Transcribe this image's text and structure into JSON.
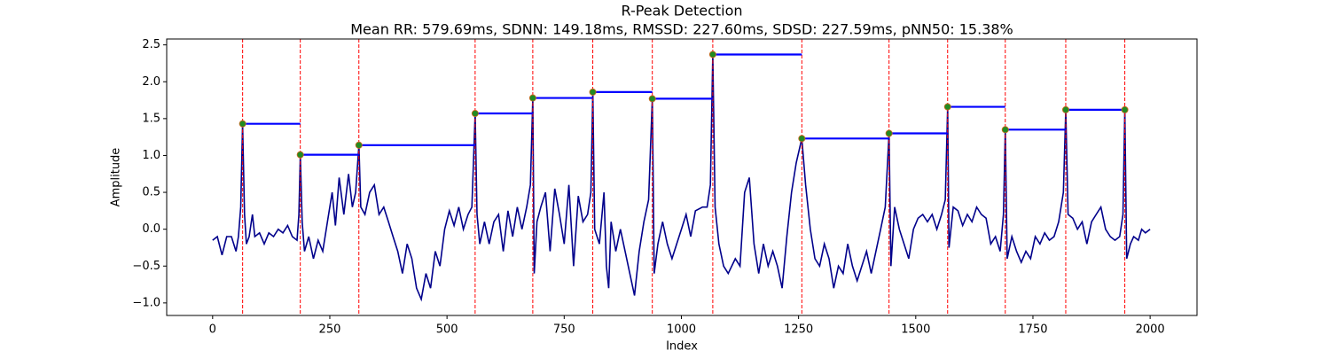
{
  "chart_data": {
    "type": "line",
    "title": "R-Peak Detection",
    "subtitle": "Mean RR: 579.69ms, SDNN: 149.18ms, RMSSD: 227.60ms, SDSD: 227.59ms, pNN50: 15.38%",
    "xlabel": "Index",
    "ylabel": "Amplitude",
    "xlim": [
      -98,
      2100
    ],
    "ylim": [
      -1.17,
      2.58
    ],
    "xticks": [
      0,
      250,
      500,
      750,
      1000,
      1250,
      1500,
      1750,
      2000
    ],
    "yticks": [
      {
        "value": -1,
        "label": "−1.0"
      },
      {
        "value": -0.5,
        "label": "−0.5"
      },
      {
        "value": 0,
        "label": "0.0"
      },
      {
        "value": 0.5,
        "label": "0.5"
      },
      {
        "value": 1,
        "label": "1.0"
      },
      {
        "value": 1.5,
        "label": "1.5"
      },
      {
        "value": 2,
        "label": "2.0"
      },
      {
        "value": 2.5,
        "label": "2.5"
      }
    ],
    "signal": {
      "color": "#00008b",
      "x": [
        0,
        10,
        20,
        30,
        40,
        50,
        55,
        60,
        64,
        68,
        72,
        78,
        85,
        90,
        100,
        110,
        120,
        130,
        140,
        150,
        160,
        170,
        180,
        184,
        187,
        191,
        196,
        205,
        215,
        225,
        235,
        245,
        255,
        262,
        270,
        280,
        290,
        298,
        305,
        312,
        316,
        325,
        335,
        345,
        355,
        365,
        375,
        385,
        395,
        405,
        415,
        425,
        435,
        445,
        455,
        465,
        475,
        485,
        495,
        505,
        515,
        525,
        535,
        545,
        553,
        560,
        564,
        570,
        580,
        590,
        600,
        610,
        620,
        630,
        640,
        650,
        660,
        670,
        678,
        683,
        686,
        692,
        700,
        710,
        720,
        730,
        740,
        750,
        760,
        770,
        780,
        790,
        800,
        807,
        811,
        815,
        825,
        835,
        840,
        845,
        850,
        860,
        870,
        880,
        890,
        900,
        910,
        920,
        930,
        938,
        942,
        950,
        960,
        970,
        980,
        990,
        1000,
        1010,
        1020,
        1030,
        1045,
        1055,
        1062,
        1067,
        1072,
        1080,
        1090,
        1100,
        1115,
        1125,
        1135,
        1145,
        1155,
        1165,
        1175,
        1185,
        1195,
        1205,
        1215,
        1225,
        1235,
        1245,
        1257,
        1265,
        1275,
        1285,
        1295,
        1305,
        1315,
        1325,
        1335,
        1345,
        1355,
        1365,
        1375,
        1385,
        1395,
        1405,
        1415,
        1425,
        1435,
        1443,
        1447,
        1455,
        1465,
        1475,
        1485,
        1495,
        1505,
        1515,
        1525,
        1535,
        1545,
        1555,
        1563,
        1568,
        1571,
        1580,
        1590,
        1600,
        1610,
        1620,
        1630,
        1640,
        1650,
        1660,
        1670,
        1680,
        1687,
        1691,
        1695,
        1705,
        1715,
        1725,
        1735,
        1745,
        1755,
        1765,
        1775,
        1785,
        1795,
        1805,
        1815,
        1820,
        1825,
        1835,
        1845,
        1855,
        1865,
        1875,
        1885,
        1895,
        1905,
        1915,
        1925,
        1935,
        1942,
        1946,
        1950,
        1958,
        1965,
        1975,
        1982,
        1990,
        2000
      ],
      "values": [
        -0.15,
        -0.1,
        -0.35,
        -0.1,
        -0.1,
        -0.3,
        -0.1,
        0.3,
        1.43,
        0.2,
        -0.2,
        -0.1,
        0.2,
        -0.1,
        -0.05,
        -0.2,
        -0.05,
        -0.1,
        0.0,
        -0.05,
        0.05,
        -0.1,
        -0.15,
        0.2,
        1.01,
        0.1,
        -0.3,
        -0.1,
        -0.4,
        -0.15,
        -0.3,
        0.1,
        0.5,
        0.05,
        0.7,
        0.2,
        0.75,
        0.3,
        0.5,
        1.14,
        0.3,
        0.2,
        0.5,
        0.6,
        0.2,
        0.3,
        0.1,
        -0.1,
        -0.3,
        -0.6,
        -0.2,
        -0.4,
        -0.8,
        -0.95,
        -0.6,
        -0.8,
        -0.3,
        -0.5,
        0.0,
        0.25,
        0.05,
        0.3,
        0.0,
        0.2,
        0.3,
        1.57,
        0.2,
        -0.2,
        0.1,
        -0.2,
        0.1,
        0.2,
        -0.3,
        0.25,
        -0.1,
        0.3,
        0.0,
        0.3,
        0.6,
        1.78,
        -0.6,
        0.1,
        0.3,
        0.5,
        -0.3,
        0.55,
        0.2,
        -0.2,
        0.6,
        -0.5,
        0.45,
        0.1,
        0.2,
        0.5,
        1.86,
        0.0,
        -0.2,
        0.5,
        -0.5,
        -0.8,
        0.1,
        -0.3,
        0.0,
        -0.3,
        -0.6,
        -0.9,
        -0.3,
        0.1,
        0.4,
        1.77,
        -0.6,
        -0.2,
        0.1,
        -0.2,
        -0.4,
        -0.2,
        0.0,
        0.2,
        -0.1,
        0.25,
        0.3,
        0.3,
        0.6,
        2.37,
        0.3,
        -0.2,
        -0.5,
        -0.6,
        -0.4,
        -0.5,
        0.5,
        0.7,
        -0.2,
        -0.6,
        -0.2,
        -0.5,
        -0.3,
        -0.5,
        -0.8,
        -0.1,
        0.5,
        0.9,
        1.23,
        0.6,
        0.0,
        -0.4,
        -0.5,
        -0.2,
        -0.4,
        -0.8,
        -0.5,
        -0.6,
        -0.2,
        -0.5,
        -0.7,
        -0.5,
        -0.3,
        -0.6,
        -0.3,
        0.0,
        0.3,
        1.3,
        -0.5,
        0.3,
        0.0,
        -0.2,
        -0.4,
        0.0,
        0.15,
        0.2,
        0.1,
        0.2,
        0.0,
        0.2,
        0.4,
        1.66,
        -0.25,
        0.3,
        0.25,
        0.05,
        0.2,
        0.1,
        0.3,
        0.2,
        0.15,
        -0.2,
        -0.1,
        -0.3,
        0.2,
        1.35,
        -0.4,
        -0.1,
        -0.3,
        -0.45,
        -0.3,
        -0.4,
        -0.1,
        -0.2,
        -0.05,
        -0.15,
        -0.1,
        0.1,
        0.5,
        1.62,
        0.2,
        0.15,
        0.0,
        0.1,
        -0.2,
        0.1,
        0.2,
        0.3,
        0.0,
        -0.1,
        -0.15,
        -0.1,
        0.2,
        1.62,
        -0.4,
        -0.2,
        -0.1,
        -0.15,
        0.0,
        -0.05,
        0.0
      ]
    },
    "peaks": {
      "color": "#228b22",
      "line_color": "#ff0000",
      "rr_color": "#0000ff",
      "x": [
        64,
        187,
        312,
        560,
        683,
        811,
        938,
        1067,
        1257,
        1443,
        1568,
        1691,
        1820,
        1946
      ],
      "values": [
        1.43,
        1.01,
        1.14,
        1.57,
        1.78,
        1.86,
        1.77,
        2.37,
        1.23,
        1.3,
        1.66,
        1.35,
        1.62,
        1.62
      ]
    }
  }
}
